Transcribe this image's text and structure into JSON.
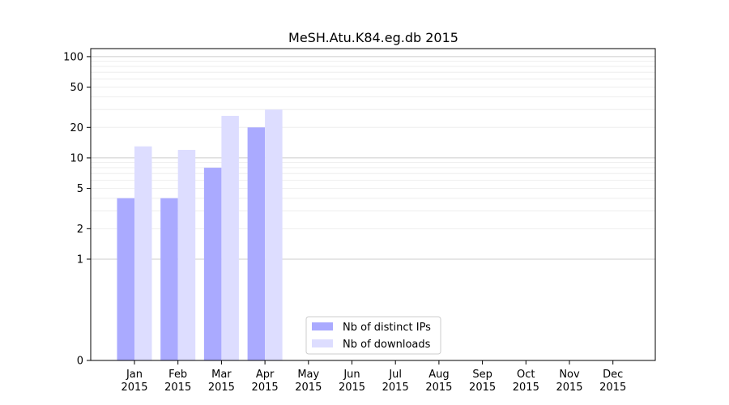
{
  "chart_data": {
    "type": "bar",
    "title": "MeSH.Atu.K84.eg.db 2015",
    "xlabel": "",
    "ylabel": "",
    "y_scale": "symlog",
    "ylim": [
      0,
      120
    ],
    "y_ticks": [
      0,
      1,
      2,
      5,
      10,
      20,
      50,
      100
    ],
    "categories": [
      "Jan\n2015",
      "Feb\n2015",
      "Mar\n2015",
      "Apr\n2015",
      "May\n2015",
      "Jun\n2015",
      "Jul\n2015",
      "Aug\n2015",
      "Sep\n2015",
      "Oct\n2015",
      "Nov\n2015",
      "Dec\n2015"
    ],
    "series": [
      {
        "name": "Nb of distinct IPs",
        "color": "#aaaaff",
        "values": [
          4,
          4,
          8,
          20,
          0,
          0,
          0,
          0,
          0,
          0,
          0,
          0
        ]
      },
      {
        "name": "Nb of downloads",
        "color": "#ddddff",
        "values": [
          13,
          12,
          26,
          30,
          0,
          0,
          0,
          0,
          0,
          0,
          0,
          0
        ]
      }
    ],
    "grid": true,
    "legend_position": "bottom-center"
  }
}
